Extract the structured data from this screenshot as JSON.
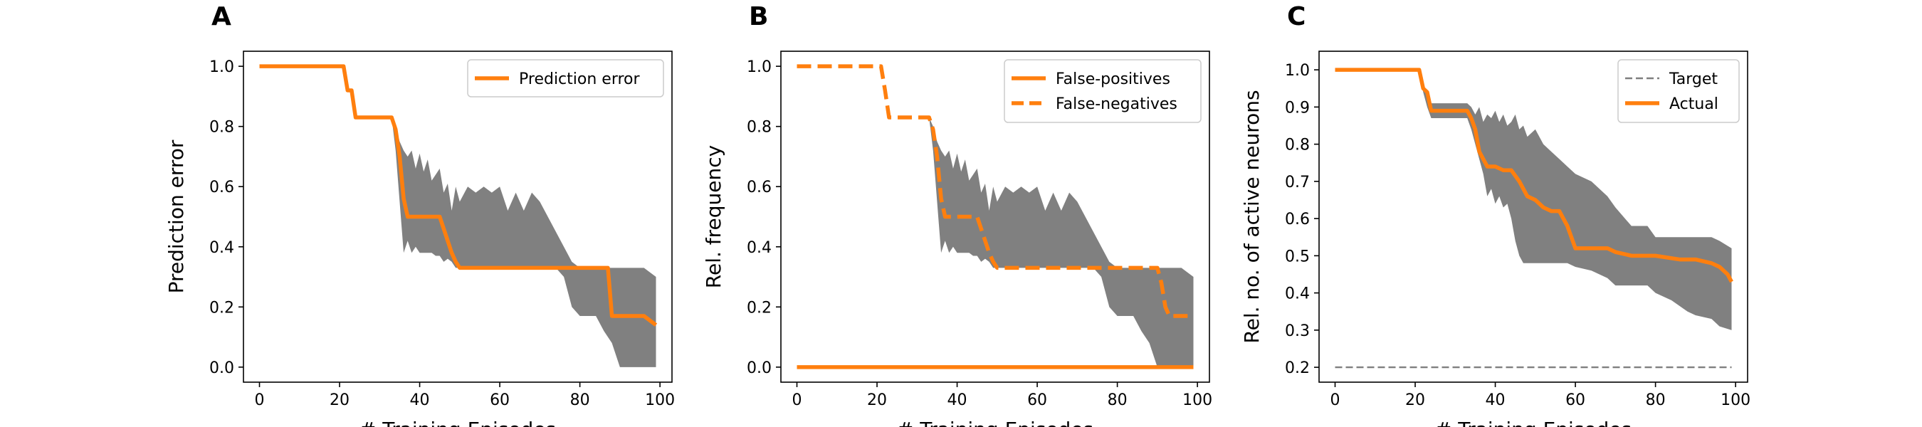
{
  "colors": {
    "orange": "#ff7f0e",
    "band": "#808080",
    "target": "#7f7f7f"
  },
  "chart_data": [
    {
      "panel": "A",
      "type": "line",
      "xlabel": "# Training Episodes",
      "ylabel": "Prediction error",
      "xlim": [
        -4,
        103
      ],
      "ylim": [
        -0.05,
        1.05
      ],
      "xticks": [
        0,
        20,
        40,
        60,
        80,
        100
      ],
      "yticks": [
        0.0,
        0.2,
        0.4,
        0.6,
        0.8,
        1.0
      ],
      "ytick_labels": [
        "0.0",
        "0.2",
        "0.4",
        "0.6",
        "0.8",
        "1.0"
      ],
      "legend_position": "top-right",
      "band": {
        "x": [
          0,
          21,
          22,
          23,
          24,
          33,
          34,
          35,
          36,
          37,
          38,
          39,
          40,
          41,
          42,
          43,
          44,
          45,
          46,
          47,
          48,
          49,
          50,
          52,
          54,
          56,
          58,
          60,
          62,
          64,
          66,
          68,
          70,
          72,
          74,
          76,
          78,
          80,
          82,
          84,
          86,
          88,
          90,
          92,
          94,
          96,
          99
        ],
        "upper": [
          1.0,
          1.0,
          0.92,
          0.92,
          0.83,
          0.83,
          0.8,
          0.75,
          0.72,
          0.7,
          0.72,
          0.66,
          0.71,
          0.65,
          0.69,
          0.62,
          0.64,
          0.66,
          0.58,
          0.61,
          0.52,
          0.6,
          0.55,
          0.6,
          0.58,
          0.6,
          0.58,
          0.6,
          0.52,
          0.58,
          0.52,
          0.58,
          0.55,
          0.5,
          0.45,
          0.4,
          0.35,
          0.33,
          0.33,
          0.33,
          0.33,
          0.33,
          0.33,
          0.33,
          0.33,
          0.33,
          0.3
        ],
        "lower": [
          1.0,
          1.0,
          0.92,
          0.92,
          0.83,
          0.83,
          0.72,
          0.55,
          0.38,
          0.42,
          0.38,
          0.4,
          0.38,
          0.38,
          0.38,
          0.38,
          0.37,
          0.37,
          0.35,
          0.36,
          0.35,
          0.33,
          0.33,
          0.33,
          0.33,
          0.33,
          0.33,
          0.33,
          0.33,
          0.33,
          0.33,
          0.33,
          0.33,
          0.33,
          0.33,
          0.3,
          0.2,
          0.17,
          0.17,
          0.17,
          0.12,
          0.08,
          0.0,
          0.0,
          0.0,
          0.0,
          0.0
        ]
      },
      "series": [
        {
          "name": "Prediction error",
          "style": "solid",
          "x": [
            0,
            21,
            22,
            23,
            24,
            33,
            34,
            35,
            36,
            37,
            38,
            45,
            46,
            48,
            49,
            50,
            87,
            88,
            95,
            96,
            99
          ],
          "y": [
            1.0,
            1.0,
            0.92,
            0.92,
            0.83,
            0.83,
            0.79,
            0.7,
            0.56,
            0.5,
            0.5,
            0.5,
            0.46,
            0.38,
            0.35,
            0.33,
            0.33,
            0.17,
            0.17,
            0.17,
            0.14
          ]
        }
      ]
    },
    {
      "panel": "B",
      "type": "line",
      "xlabel": "# Training Episodes",
      "ylabel": "Rel. frequency",
      "xlim": [
        -4,
        103
      ],
      "ylim": [
        -0.05,
        1.05
      ],
      "xticks": [
        0,
        20,
        40,
        60,
        80,
        100
      ],
      "yticks": [
        0.0,
        0.2,
        0.4,
        0.6,
        0.8,
        1.0
      ],
      "ytick_labels": [
        "0.0",
        "0.2",
        "0.4",
        "0.6",
        "0.8",
        "1.0"
      ],
      "legend_position": "top-right",
      "band": {
        "x": [
          0,
          21,
          22,
          23,
          24,
          33,
          34,
          35,
          36,
          37,
          38,
          39,
          40,
          41,
          42,
          43,
          44,
          45,
          46,
          47,
          48,
          49,
          50,
          52,
          54,
          56,
          58,
          60,
          62,
          64,
          66,
          68,
          70,
          72,
          74,
          76,
          78,
          80,
          82,
          84,
          86,
          88,
          90,
          92,
          94,
          96,
          99
        ],
        "upper": [
          1.0,
          1.0,
          0.92,
          0.92,
          0.83,
          0.83,
          0.8,
          0.75,
          0.72,
          0.7,
          0.72,
          0.66,
          0.71,
          0.65,
          0.69,
          0.62,
          0.64,
          0.66,
          0.58,
          0.61,
          0.52,
          0.6,
          0.55,
          0.6,
          0.58,
          0.6,
          0.58,
          0.6,
          0.52,
          0.58,
          0.52,
          0.58,
          0.55,
          0.5,
          0.45,
          0.4,
          0.35,
          0.33,
          0.33,
          0.33,
          0.33,
          0.33,
          0.33,
          0.33,
          0.33,
          0.33,
          0.3
        ],
        "lower": [
          1.0,
          1.0,
          0.92,
          0.92,
          0.83,
          0.83,
          0.72,
          0.55,
          0.38,
          0.42,
          0.38,
          0.4,
          0.38,
          0.38,
          0.38,
          0.38,
          0.37,
          0.37,
          0.35,
          0.36,
          0.35,
          0.33,
          0.33,
          0.33,
          0.33,
          0.33,
          0.33,
          0.33,
          0.33,
          0.33,
          0.33,
          0.33,
          0.33,
          0.33,
          0.33,
          0.3,
          0.2,
          0.17,
          0.17,
          0.17,
          0.12,
          0.08,
          0.0,
          0.0,
          0.0,
          0.0,
          0.0
        ]
      },
      "series": [
        {
          "name": "False-positives",
          "style": "solid",
          "x": [
            0,
            99
          ],
          "y": [
            0.0,
            0.0
          ]
        },
        {
          "name": "False-negatives",
          "style": "dashed",
          "x": [
            0,
            21,
            22,
            23,
            24,
            33,
            34,
            35,
            36,
            37,
            38,
            45,
            46,
            48,
            49,
            50,
            90,
            91,
            92,
            93,
            99
          ],
          "y": [
            1.0,
            1.0,
            0.92,
            0.83,
            0.83,
            0.83,
            0.79,
            0.7,
            0.56,
            0.5,
            0.5,
            0.5,
            0.46,
            0.38,
            0.35,
            0.33,
            0.33,
            0.28,
            0.2,
            0.17,
            0.17
          ]
        }
      ]
    },
    {
      "panel": "C",
      "type": "line",
      "xlabel": "# Training Episodes",
      "ylabel": "Rel. no. of active neurons",
      "xlim": [
        -4,
        103
      ],
      "ylim": [
        0.16,
        1.05
      ],
      "xticks": [
        0,
        20,
        40,
        60,
        80,
        100
      ],
      "yticks": [
        0.2,
        0.3,
        0.4,
        0.5,
        0.6,
        0.7,
        0.8,
        0.9,
        1.0
      ],
      "ytick_labels": [
        "0.2",
        "0.3",
        "0.4",
        "0.5",
        "0.6",
        "0.7",
        "0.8",
        "0.9",
        "1.0"
      ],
      "legend_position": "top-right",
      "band": {
        "x": [
          0,
          21,
          22,
          23,
          24,
          26,
          30,
          33,
          34,
          35,
          36,
          37,
          38,
          39,
          40,
          41,
          42,
          43,
          44,
          45,
          46,
          47,
          48,
          50,
          52,
          54,
          56,
          58,
          60,
          64,
          68,
          70,
          74,
          78,
          80,
          84,
          88,
          90,
          94,
          96,
          99
        ],
        "upper": [
          1.0,
          1.0,
          0.96,
          0.94,
          0.91,
          0.91,
          0.91,
          0.91,
          0.9,
          0.88,
          0.9,
          0.86,
          0.88,
          0.87,
          0.89,
          0.86,
          0.88,
          0.85,
          0.86,
          0.88,
          0.84,
          0.85,
          0.82,
          0.84,
          0.8,
          0.78,
          0.76,
          0.74,
          0.72,
          0.7,
          0.66,
          0.63,
          0.58,
          0.58,
          0.55,
          0.55,
          0.55,
          0.55,
          0.55,
          0.54,
          0.52
        ],
        "lower": [
          1.0,
          1.0,
          0.94,
          0.9,
          0.87,
          0.87,
          0.87,
          0.87,
          0.84,
          0.8,
          0.76,
          0.72,
          0.66,
          0.68,
          0.64,
          0.66,
          0.63,
          0.64,
          0.6,
          0.54,
          0.5,
          0.48,
          0.48,
          0.48,
          0.48,
          0.48,
          0.48,
          0.48,
          0.47,
          0.46,
          0.44,
          0.42,
          0.42,
          0.42,
          0.4,
          0.38,
          0.35,
          0.34,
          0.33,
          0.31,
          0.3
        ]
      },
      "series": [
        {
          "name": "Target",
          "style": "dashed-thin",
          "x": [
            0,
            99
          ],
          "y": [
            0.2,
            0.2
          ]
        },
        {
          "name": "Actual",
          "style": "solid",
          "x": [
            0,
            21,
            22,
            23,
            24,
            33,
            34,
            35,
            36,
            37,
            38,
            40,
            42,
            44,
            46,
            48,
            50,
            52,
            54,
            56,
            58,
            60,
            66,
            68,
            70,
            74,
            78,
            80,
            86,
            90,
            94,
            96,
            98,
            99
          ],
          "y": [
            1.0,
            1.0,
            0.95,
            0.94,
            0.89,
            0.89,
            0.87,
            0.84,
            0.78,
            0.76,
            0.74,
            0.74,
            0.73,
            0.73,
            0.7,
            0.66,
            0.65,
            0.63,
            0.62,
            0.62,
            0.58,
            0.52,
            0.52,
            0.52,
            0.51,
            0.5,
            0.5,
            0.5,
            0.49,
            0.49,
            0.48,
            0.47,
            0.45,
            0.43
          ]
        }
      ]
    }
  ]
}
